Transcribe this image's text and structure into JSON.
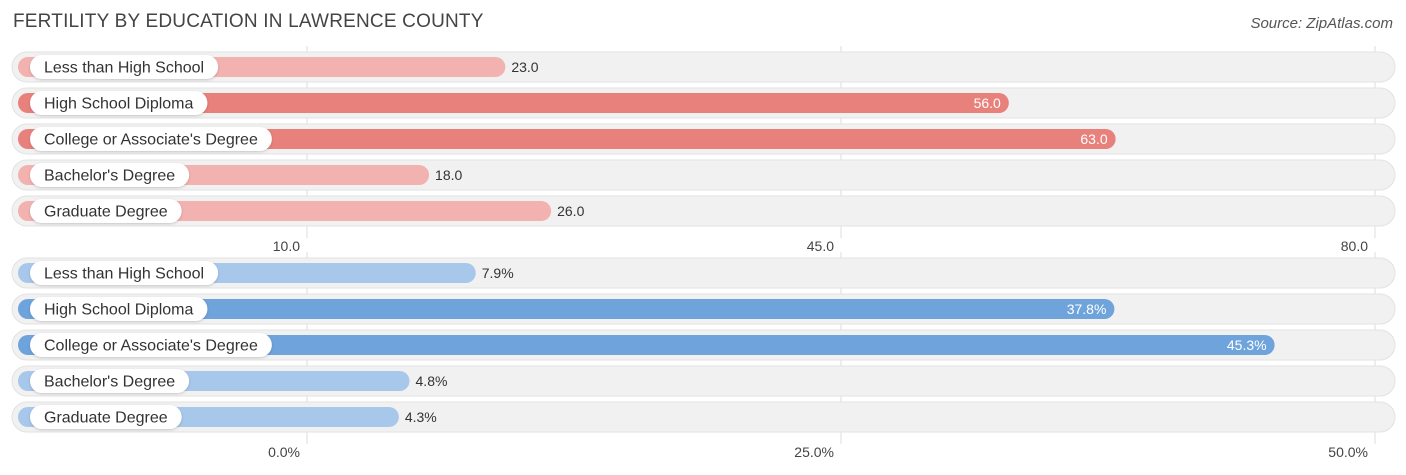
{
  "title": "FERTILITY BY EDUCATION IN LAWRENCE COUNTY",
  "source": "Source: ZipAtlas.com",
  "chart_data": [
    {
      "type": "bar",
      "orientation": "horizontal",
      "categories": [
        "Less than High School",
        "High School Diploma",
        "College or Associate's Degree",
        "Bachelor's Degree",
        "Graduate Degree"
      ],
      "values": [
        23.0,
        56.0,
        63.0,
        18.0,
        26.0
      ],
      "value_labels": [
        "23.0",
        "56.0",
        "63.0",
        "18.0",
        "26.0"
      ],
      "ticks": [
        10.0,
        45.0,
        80.0
      ],
      "tick_labels": [
        "10.0",
        "45.0",
        "80.0"
      ],
      "xlim": [
        10.0,
        80.0
      ],
      "grid": true,
      "colors": {
        "strong": "#e8807c",
        "light": "#f2b2b0"
      }
    },
    {
      "type": "bar",
      "orientation": "horizontal",
      "categories": [
        "Less than High School",
        "High School Diploma",
        "College or Associate's Degree",
        "Bachelor's Degree",
        "Graduate Degree"
      ],
      "values": [
        7.9,
        37.8,
        45.3,
        4.8,
        4.3
      ],
      "value_labels": [
        "7.9%",
        "37.8%",
        "45.3%",
        "4.8%",
        "4.3%"
      ],
      "ticks": [
        0.0,
        25.0,
        50.0
      ],
      "tick_labels": [
        "0.0%",
        "25.0%",
        "50.0%"
      ],
      "xlim": [
        0.0,
        50.0
      ],
      "grid": true,
      "colors": {
        "strong": "#6fa3dc",
        "light": "#a7c7eb"
      }
    }
  ]
}
